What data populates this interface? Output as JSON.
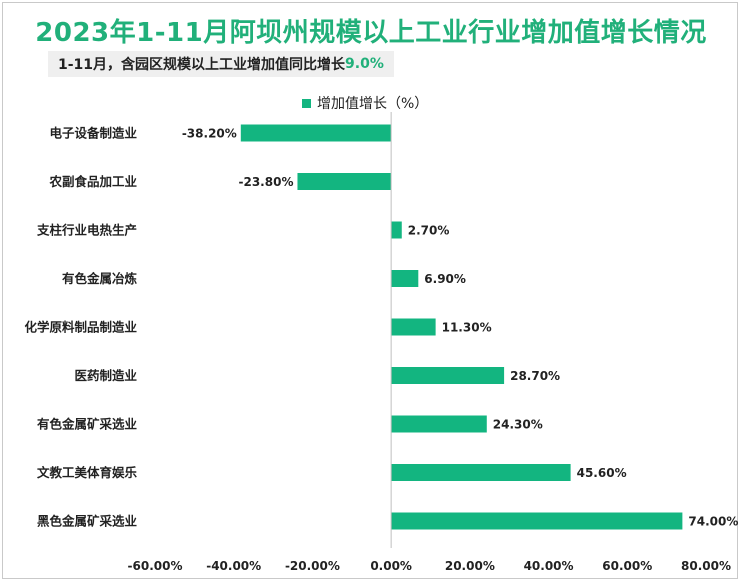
{
  "title": "2023年1-11月阿坝州规模以上工业行业增加值增长情况",
  "subtitle": {
    "text": "1-11月，含园区规模以上工业增加值同比增长",
    "highlight": "9.0%"
  },
  "colors": {
    "bar": "#13b580",
    "title": "#21b07a",
    "axis": "#bfbfbf"
  },
  "chart_data": {
    "type": "bar",
    "orientation": "horizontal",
    "categories": [
      "电子设备制造业",
      "农副食品加工业",
      "支柱行业电热生产",
      "有色金属冶炼",
      "化学原料制品制造业",
      "医药制造业",
      "有色金属矿采选业",
      "文教工美体育娱乐",
      "黑色金属矿采选业"
    ],
    "series": [
      {
        "name": "增加值增长（%）",
        "values": [
          -38.2,
          -23.8,
          2.7,
          6.9,
          11.3,
          28.7,
          24.3,
          45.6,
          74.0
        ],
        "labels": [
          "-38.20%",
          "-23.80%",
          "2.70%",
          "6.90%",
          "11.30%",
          "28.70%",
          "24.30%",
          "45.60%",
          "74.00%"
        ]
      }
    ],
    "xlim": [
      -60,
      80
    ],
    "xticks": [
      -60,
      -40,
      -20,
      0,
      20,
      40,
      60,
      80
    ],
    "xtick_labels": [
      "-60.00%",
      "-40.00%",
      "-20.00%",
      "0.00%",
      "20.00%",
      "40.00%",
      "60.00%",
      "80.00%"
    ],
    "grid": false,
    "legend": "top-center"
  }
}
